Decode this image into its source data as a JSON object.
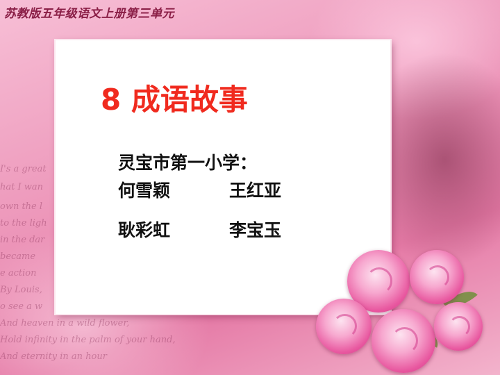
{
  "header": {
    "text": "苏教版五年级语文上册第三单元"
  },
  "slide": {
    "title": "8 成语故事",
    "school": "灵宝市第一小学：",
    "names": [
      "何雪颖",
      "王红亚",
      "耿彩虹",
      "李宝玉"
    ]
  },
  "background_script": [
    "I's a great",
    "hat I wan",
    "own the l",
    "to the ligh",
    "in the dar",
    "became",
    "e action",
    "By Louis,",
    "o see a w",
    "And heaven in a wild flower,",
    "Hold infinity in the palm of your hand,",
    "And eternity in an hour"
  ],
  "colors": {
    "title": "#f02a1e",
    "header": "#8a1e46",
    "text": "#111111"
  }
}
